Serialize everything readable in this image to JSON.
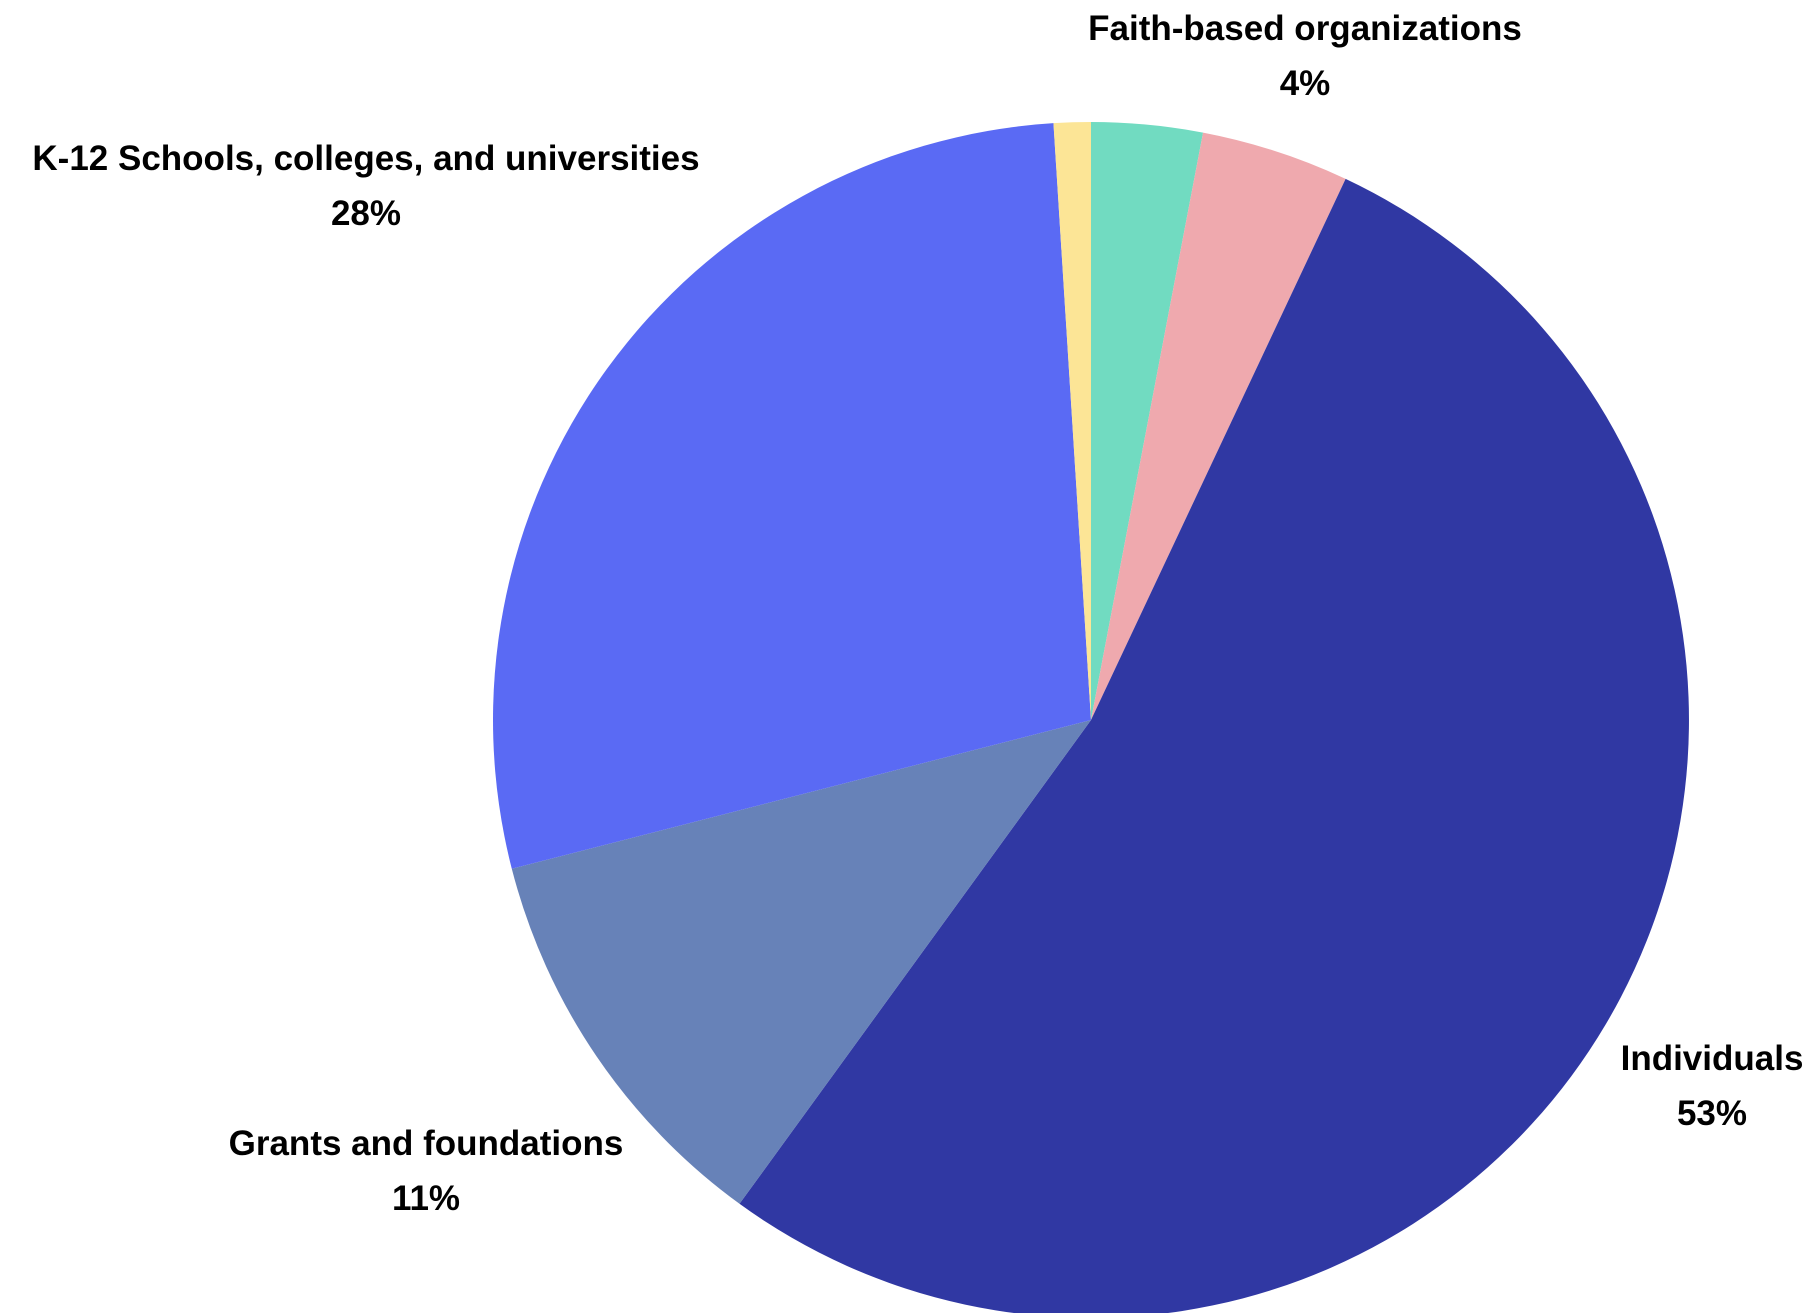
{
  "chart_data": {
    "type": "pie",
    "title": "",
    "start_angle_deg": 0,
    "direction": "clockwise",
    "slices": [
      {
        "name": "",
        "value": 3,
        "value_label": "",
        "color": "#71dbc1",
        "label_position": ""
      },
      {
        "name": "Faith-based organizations",
        "value": 4,
        "value_label": "4%",
        "color": "#efa9ae",
        "label_position": "top"
      },
      {
        "name": "Individuals",
        "value": 53,
        "value_label": "53%",
        "color": "#3038a3",
        "label_position": "right"
      },
      {
        "name": "Grants and foundations",
        "value": 11,
        "value_label": "11%",
        "color": "#6782b8",
        "label_position": "bottom-left"
      },
      {
        "name": "K-12 Schools, colleges, and universities",
        "value": 28,
        "value_label": "28%",
        "color": "#5a6af4",
        "label_position": "top-left"
      },
      {
        "name": "",
        "value": 1,
        "value_label": "",
        "color": "#fce596",
        "label_position": ""
      }
    ]
  }
}
